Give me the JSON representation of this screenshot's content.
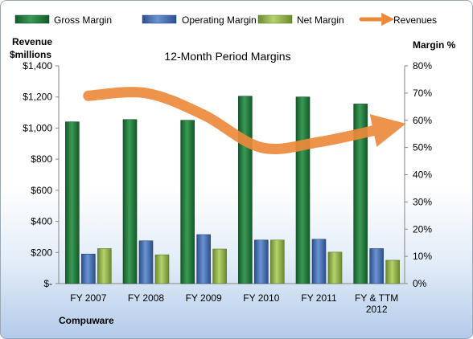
{
  "chart_data": {
    "type": "bar",
    "title": "12-Month Period Margins",
    "y_left_label_line1": "Revenue",
    "y_left_label_line2": "$millions",
    "y_right_label": "Margin %",
    "footer_label": "Compuware",
    "categories": [
      [
        "FY 2007"
      ],
      [
        "FY 2008"
      ],
      [
        "FY 2009"
      ],
      [
        "FY 2010"
      ],
      [
        "FY 2011"
      ],
      [
        "FY & TTM",
        "2012"
      ]
    ],
    "y_left_ticks": [
      "$-",
      "$200",
      "$400",
      "$600",
      "$800",
      "$1,000",
      "$1,200",
      "$1,400"
    ],
    "y_right_ticks": [
      "0%",
      "10%",
      "20%",
      "30%",
      "40%",
      "50%",
      "60%",
      "70%",
      "80%"
    ],
    "ylim_left": [
      0,
      1400
    ],
    "ylim_right": [
      0,
      80
    ],
    "grid": false,
    "legend_position": "top",
    "series": [
      {
        "name": "Gross Margin",
        "type": "bar",
        "axis": "left",
        "color": "#1e7b3c",
        "values": [
          1040,
          1055,
          1050,
          1205,
          1200,
          1155
        ]
      },
      {
        "name": "Operating Margin",
        "type": "bar",
        "axis": "left",
        "color": "#4470b8",
        "values": [
          190,
          275,
          315,
          280,
          285,
          225
        ]
      },
      {
        "name": "Net Margin",
        "type": "bar",
        "axis": "left",
        "color": "#8fb24a",
        "values": [
          225,
          185,
          222,
          280,
          202,
          150
        ]
      },
      {
        "name": "Revenues",
        "type": "line",
        "axis": "right",
        "color": "#ec8a3c",
        "values": [
          69,
          70,
          62,
          50,
          52,
          57
        ]
      }
    ]
  }
}
